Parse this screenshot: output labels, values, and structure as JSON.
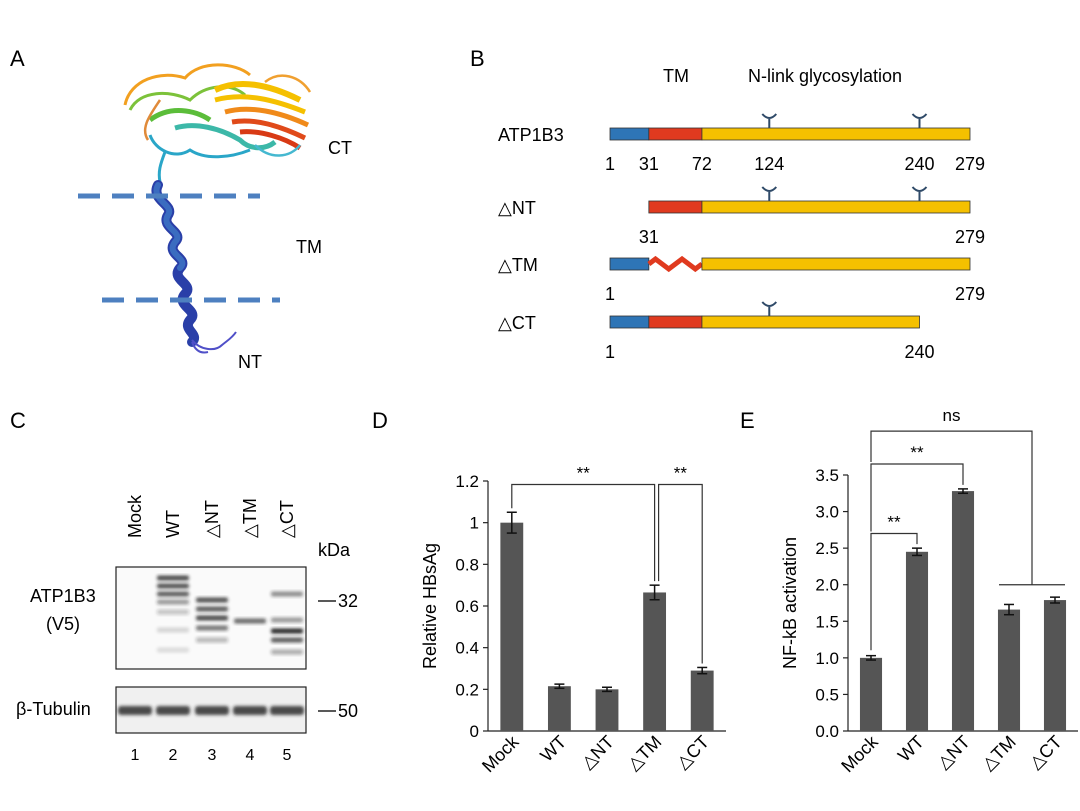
{
  "panels": {
    "a": {
      "letter": "A",
      "labels": {
        "ct": "CT",
        "tm": "TM",
        "nt": "NT"
      }
    },
    "b": {
      "letter": "B",
      "header": {
        "tm": "TM",
        "glyco": "N-link glycosylation"
      },
      "constructs": [
        {
          "label": "ATP1B3",
          "start": 1,
          "end": 279,
          "tm": "normal",
          "ticks": [
            "1",
            "31",
            "72",
            "124",
            "240",
            "279"
          ],
          "glyco_sites": [
            124,
            240
          ]
        },
        {
          "label": "△NT",
          "start": 31,
          "end": 279,
          "tm": "normal",
          "ticks": [
            "31",
            "279"
          ],
          "glyco_sites": [
            124,
            240
          ]
        },
        {
          "label": "△TM",
          "start": 1,
          "end": 279,
          "tm": "deleted",
          "ticks": [
            "1",
            "279"
          ],
          "glyco_sites": []
        },
        {
          "label": "△CT",
          "start": 1,
          "end": 240,
          "tm": "normal",
          "ticks": [
            "1",
            "240"
          ],
          "glyco_sites": [
            124
          ]
        }
      ],
      "domain_colors": {
        "nt": "#2e75b6",
        "tm": "#e03a1f",
        "ct": "#f5c000"
      }
    },
    "c": {
      "letter": "C",
      "lanes": [
        "Mock",
        "WT",
        "△NT",
        "△TM",
        "△CT"
      ],
      "lane_numbers": [
        "1",
        "2",
        "3",
        "4",
        "5"
      ],
      "unit": "kDa",
      "blot1_label_line1": "ATP1B3",
      "blot1_label_line2": "(V5)",
      "blot2_label": "β-Tubulin",
      "marker1": "32",
      "marker2": "50"
    }
  },
  "chart_data": [
    {
      "panel": "D",
      "type": "bar",
      "ylabel": "Relative HBsAg",
      "categories": [
        "Mock",
        "WT",
        "△NT",
        "△TM",
        "△CT"
      ],
      "values": [
        1.0,
        0.215,
        0.2,
        0.665,
        0.29
      ],
      "errors": [
        0.05,
        0.01,
        0.01,
        0.035,
        0.015
      ],
      "ylim": [
        0,
        1.2
      ],
      "yticks": [
        "0",
        "0.2",
        "0.4",
        "0.6",
        "0.8",
        "1",
        "1.2"
      ],
      "bar_color": "#555555",
      "significance": [
        "**",
        "**"
      ]
    },
    {
      "panel": "E",
      "type": "bar",
      "ylabel": "NF-kB activation",
      "categories": [
        "Mock",
        "WT",
        "△NT",
        "△TM",
        "△CT"
      ],
      "values": [
        1.0,
        2.45,
        3.28,
        1.66,
        1.79
      ],
      "errors": [
        0.03,
        0.05,
        0.03,
        0.07,
        0.04
      ],
      "ylim": [
        0,
        3.5
      ],
      "yticks": [
        "0.0",
        "0.5",
        "1.0",
        "1.5",
        "2.0",
        "2.5",
        "3.0",
        "3.5"
      ],
      "bar_color": "#555555",
      "significance": [
        "**",
        "**",
        "ns"
      ]
    }
  ]
}
